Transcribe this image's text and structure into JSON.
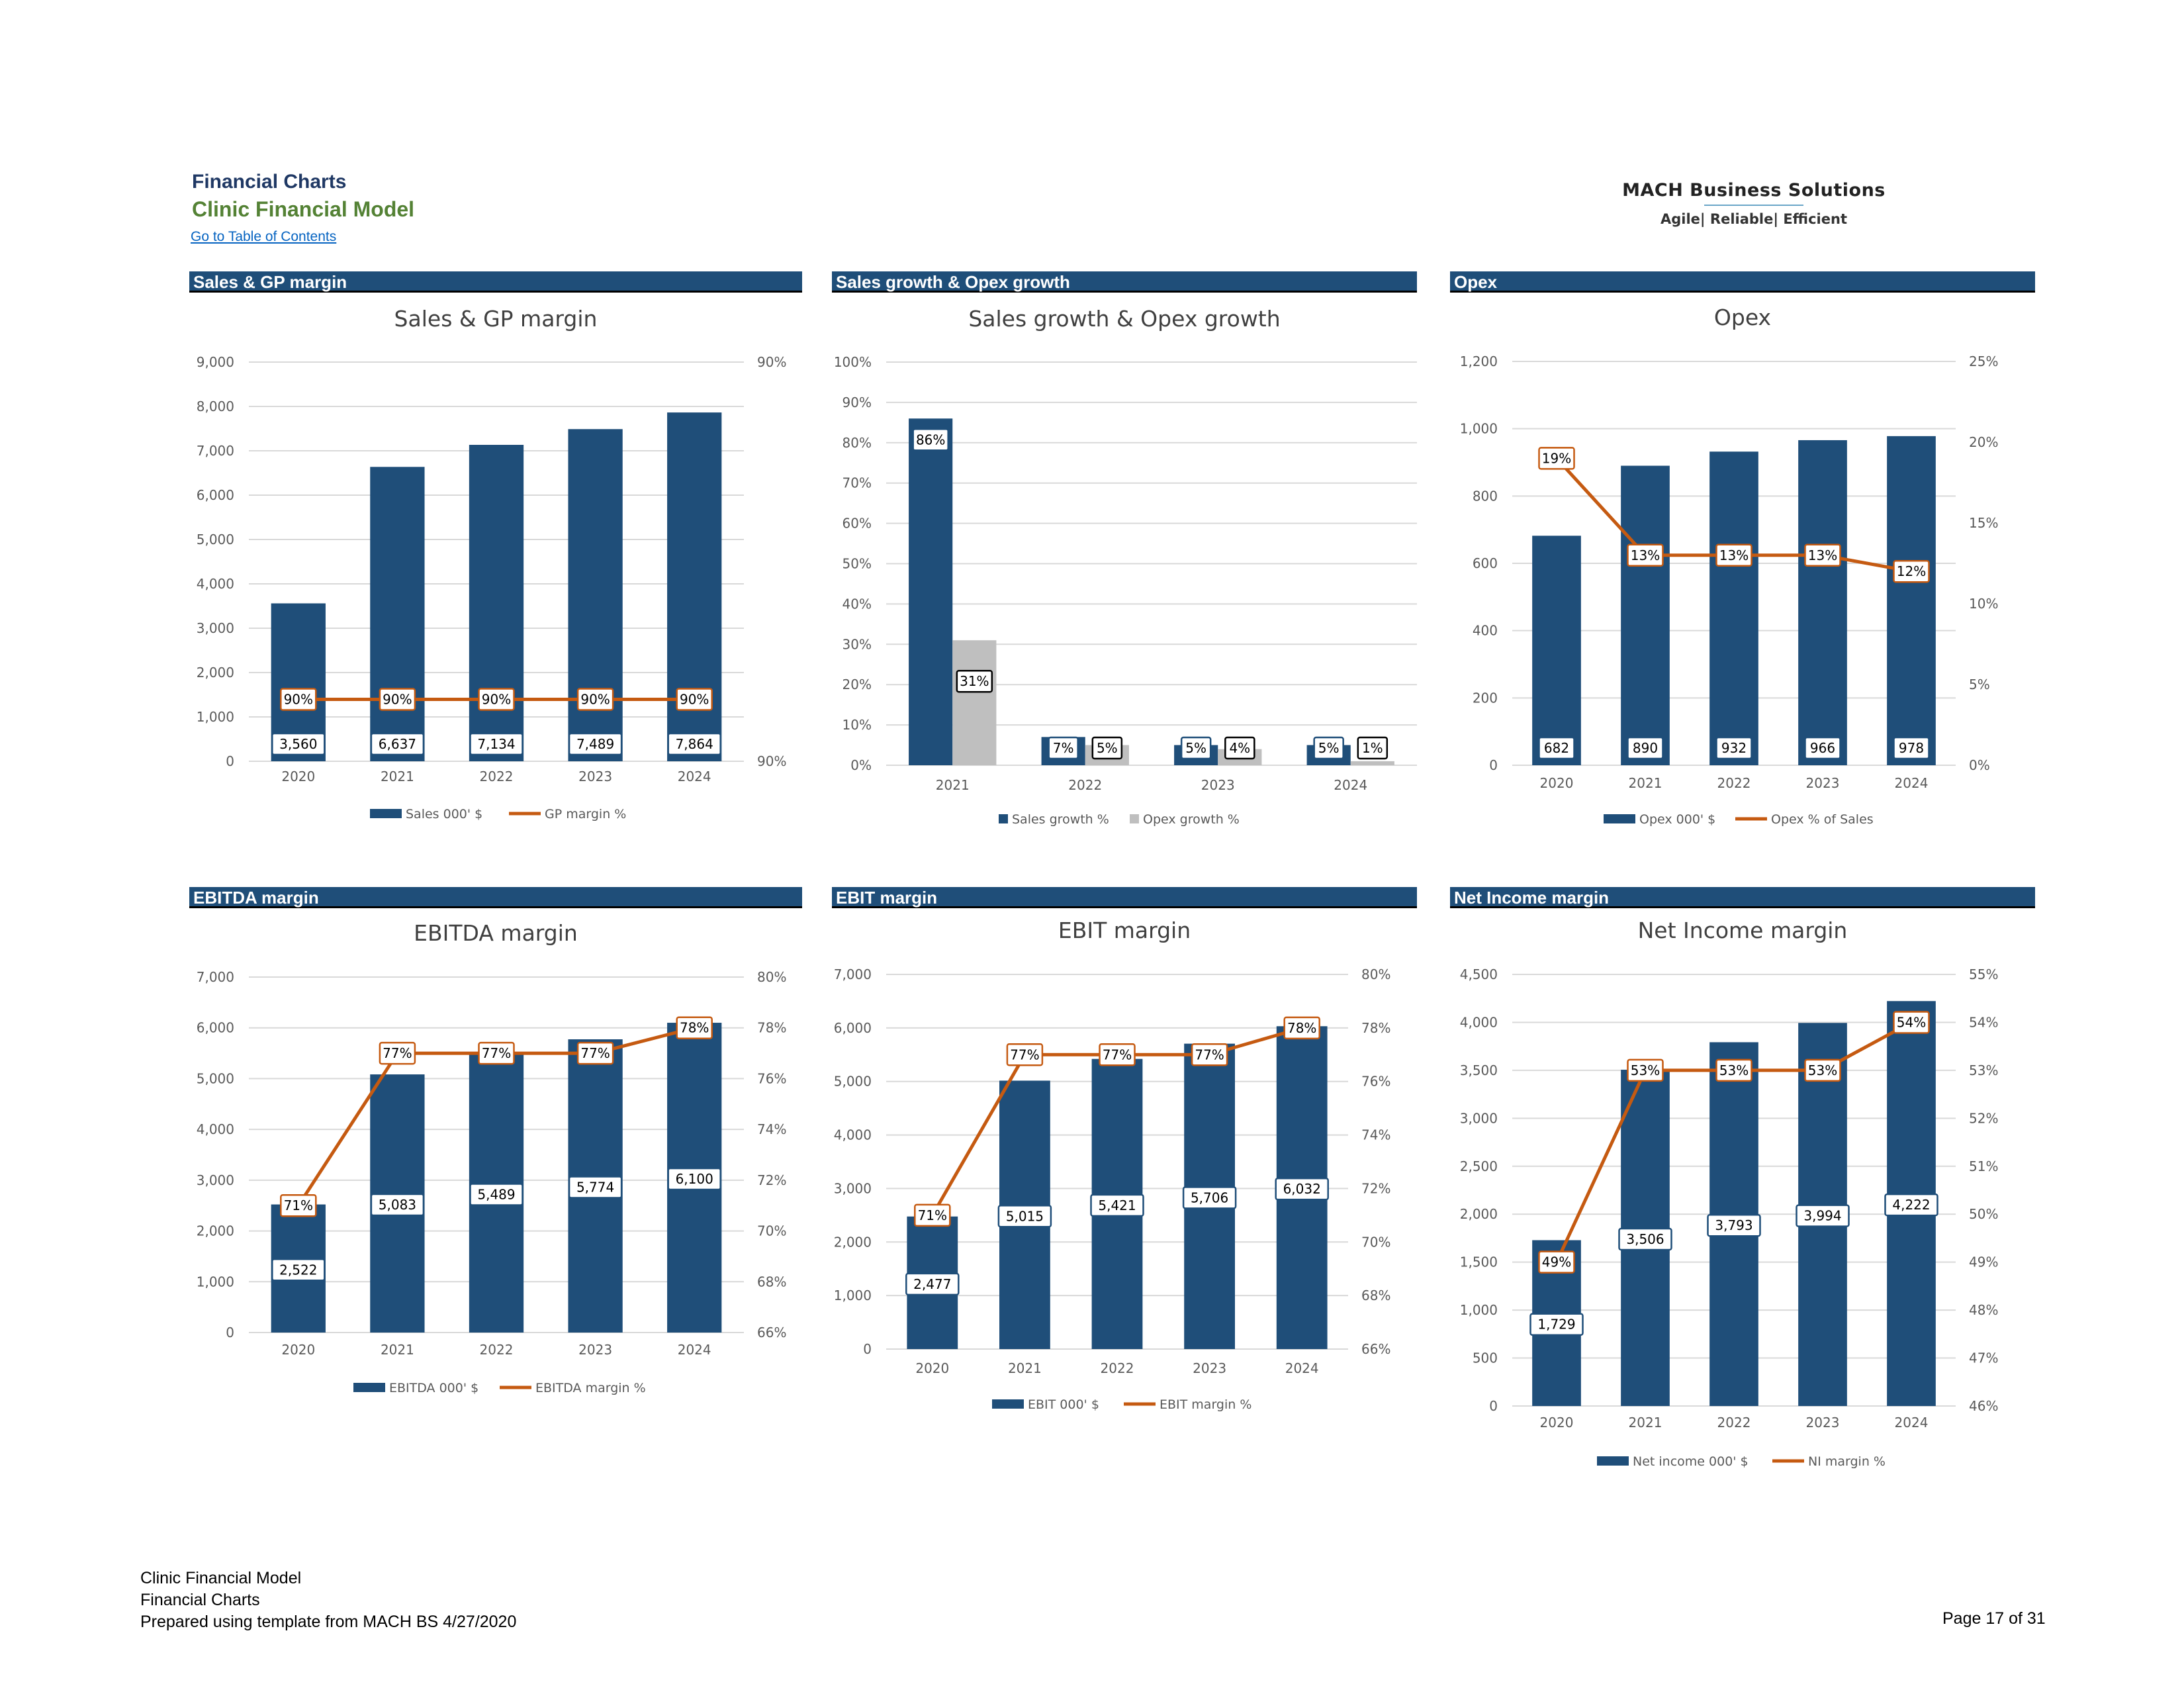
{
  "header": {
    "title": "Financial Charts",
    "subtitle": "Clinic Financial Model",
    "toc_link": "Go to Table of Contents",
    "logo_name": "MACH Business Solutions",
    "logo_tagline": "Agile| Reliable| Efficient"
  },
  "sections": [
    "Sales & GP margin",
    "Sales growth & Opex growth",
    "Opex",
    "EBITDA margin",
    "EBIT margin",
    "Net Income margin"
  ],
  "footer": {
    "line1": "Clinic Financial Model",
    "line2": "Financial Charts",
    "line3": "Prepared using template from MACH BS 4/27/2020",
    "page": "Page 17 of 31"
  },
  "colors": {
    "bar": "#1f4e79",
    "line": "#c55a11",
    "grey_bar": "#bfbfbf",
    "grid": "#d9d9d9",
    "section_bar": "#1f4e79"
  },
  "chart_data": [
    {
      "type": "bar+line",
      "title": "Sales & GP margin",
      "categories": [
        "2020",
        "2021",
        "2022",
        "2023",
        "2024"
      ],
      "series": [
        {
          "name": "Sales 000' $",
          "type": "bar",
          "axis": "left",
          "values": [
            3560,
            6637,
            7134,
            7489,
            7864
          ],
          "labels": [
            "3,560",
            "6,637",
            "7,134",
            "7,489",
            "7,864"
          ]
        },
        {
          "name": "GP margin %",
          "type": "line",
          "axis": "right",
          "values": [
            90,
            90,
            90,
            90,
            90
          ],
          "labels": [
            "90%",
            "90%",
            "90%",
            "90%",
            "90%"
          ]
        }
      ],
      "y_left": {
        "min": 0,
        "max": 9000,
        "ticks": [
          "0",
          "1,000",
          "2,000",
          "3,000",
          "4,000",
          "5,000",
          "6,000",
          "7,000",
          "8,000",
          "9,000"
        ]
      },
      "y_right": {
        "ticks": [
          "90%",
          "90%"
        ]
      },
      "legend": "bottom"
    },
    {
      "type": "bar",
      "title": "Sales growth & Opex growth",
      "categories": [
        "2021",
        "2022",
        "2023",
        "2024"
      ],
      "series": [
        {
          "name": "Sales growth %",
          "type": "bar",
          "axis": "left",
          "values": [
            86,
            7,
            5,
            5
          ],
          "labels": [
            "86%",
            "7%",
            "5%",
            "5%"
          ]
        },
        {
          "name": "Opex growth %",
          "type": "bar",
          "axis": "left",
          "values": [
            31,
            5,
            4,
            1
          ],
          "labels": [
            "31%",
            "5%",
            "4%",
            "1%"
          ]
        }
      ],
      "y_left": {
        "min": 0,
        "max": 100,
        "ticks": [
          "0%",
          "10%",
          "20%",
          "30%",
          "40%",
          "50%",
          "60%",
          "70%",
          "80%",
          "90%",
          "100%"
        ]
      },
      "legend": "bottom"
    },
    {
      "type": "bar+line",
      "title": "Opex",
      "categories": [
        "2020",
        "2021",
        "2022",
        "2023",
        "2024"
      ],
      "series": [
        {
          "name": "Opex 000' $",
          "type": "bar",
          "axis": "left",
          "values": [
            682,
            890,
            932,
            966,
            978
          ],
          "labels": [
            "682",
            "890",
            "932",
            "966",
            "978"
          ]
        },
        {
          "name": "Opex % of Sales",
          "type": "line",
          "axis": "right",
          "values": [
            19,
            13,
            13,
            13,
            12
          ],
          "labels": [
            "19%",
            "13%",
            "13%",
            "13%",
            "12%"
          ]
        }
      ],
      "y_left": {
        "min": 0,
        "max": 1200,
        "ticks": [
          "0",
          "200",
          "400",
          "600",
          "800",
          "1,000",
          "1,200"
        ]
      },
      "y_right": {
        "min": 0,
        "max": 25,
        "ticks": [
          "0%",
          "5%",
          "10%",
          "15%",
          "20%",
          "25%"
        ]
      },
      "legend": "bottom"
    },
    {
      "type": "bar+line",
      "title": "EBITDA margin",
      "categories": [
        "2020",
        "2021",
        "2022",
        "2023",
        "2024"
      ],
      "series": [
        {
          "name": "EBITDA 000' $",
          "type": "bar",
          "axis": "left",
          "values": [
            2522,
            5083,
            5489,
            5774,
            6100
          ],
          "labels": [
            "2,522",
            "5,083",
            "5,489",
            "5,774",
            "6,100"
          ]
        },
        {
          "name": "EBITDA margin %",
          "type": "line",
          "axis": "right",
          "values": [
            71,
            77,
            77,
            77,
            78
          ],
          "labels": [
            "71%",
            "77%",
            "77%",
            "77%",
            "78%"
          ]
        }
      ],
      "y_left": {
        "min": 0,
        "max": 7000,
        "ticks": [
          "0",
          "1,000",
          "2,000",
          "3,000",
          "4,000",
          "5,000",
          "6,000",
          "7,000"
        ]
      },
      "y_right": {
        "min": 66,
        "max": 80,
        "ticks": [
          "66%",
          "68%",
          "70%",
          "72%",
          "74%",
          "76%",
          "78%",
          "80%"
        ]
      },
      "legend": "bottom"
    },
    {
      "type": "bar+line",
      "title": "EBIT margin",
      "categories": [
        "2020",
        "2021",
        "2022",
        "2023",
        "2024"
      ],
      "series": [
        {
          "name": "EBIT 000' $",
          "type": "bar",
          "axis": "left",
          "values": [
            2477,
            5015,
            5421,
            5706,
            6032
          ],
          "labels": [
            "2,477",
            "5,015",
            "5,421",
            "5,706",
            "6,032"
          ]
        },
        {
          "name": "EBIT margin %",
          "type": "line",
          "axis": "right",
          "values": [
            71,
            77,
            77,
            77,
            78
          ],
          "labels": [
            "71%",
            "77%",
            "77%",
            "77%",
            "78%"
          ]
        }
      ],
      "y_left": {
        "min": 0,
        "max": 7000,
        "ticks": [
          "0",
          "1,000",
          "2,000",
          "3,000",
          "4,000",
          "5,000",
          "6,000",
          "7,000"
        ]
      },
      "y_right": {
        "min": 66,
        "max": 80,
        "ticks": [
          "66%",
          "68%",
          "70%",
          "72%",
          "74%",
          "76%",
          "78%",
          "80%"
        ]
      },
      "legend": "bottom"
    },
    {
      "type": "bar+line",
      "title": "Net Income margin",
      "categories": [
        "2020",
        "2021",
        "2022",
        "2023",
        "2024"
      ],
      "series": [
        {
          "name": "Net income 000' $",
          "type": "bar",
          "axis": "left",
          "values": [
            1729,
            3506,
            3793,
            3994,
            4222
          ],
          "labels": [
            "1,729",
            "3,506",
            "3,793",
            "3,994",
            "4,222"
          ]
        },
        {
          "name": "NI margin %",
          "type": "line",
          "axis": "right",
          "values": [
            49,
            53,
            53,
            53,
            54
          ],
          "labels": [
            "49%",
            "53%",
            "53%",
            "53%",
            "54%"
          ]
        }
      ],
      "y_left": {
        "min": 0,
        "max": 4500,
        "ticks": [
          "0",
          "500",
          "1,000",
          "1,500",
          "2,000",
          "2,500",
          "3,000",
          "3,500",
          "4,000",
          "4,500"
        ]
      },
      "y_right": {
        "min": 46,
        "max": 55,
        "ticks": [
          "46%",
          "47%",
          "48%",
          "49%",
          "50%",
          "51%",
          "52%",
          "53%",
          "54%",
          "55%"
        ]
      },
      "legend": "bottom"
    }
  ]
}
